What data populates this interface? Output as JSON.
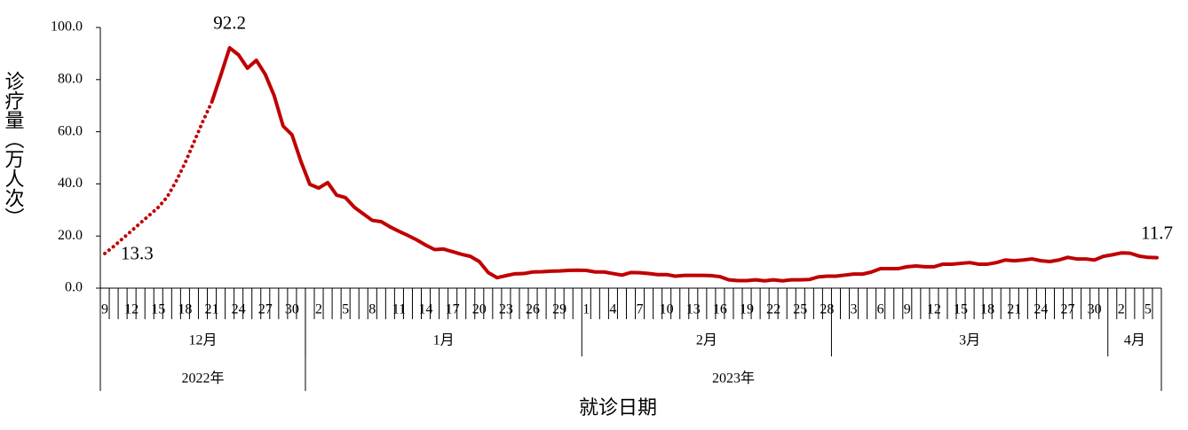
{
  "chart_data": {
    "type": "line",
    "y_label": "诊疗量（万人次）",
    "x_label": "就诊日期",
    "ylim": [
      0,
      100
    ],
    "yticks": [
      {
        "value": 0,
        "label": "0.0"
      },
      {
        "value": 20,
        "label": "20.0"
      },
      {
        "value": 40,
        "label": "40.0"
      },
      {
        "value": 60,
        "label": "60.0"
      },
      {
        "value": 80,
        "label": "80.0"
      },
      {
        "value": 100,
        "label": "100.0"
      }
    ],
    "years": [
      {
        "label": "2022年",
        "months": [
          {
            "label": "12月",
            "days": [
              9,
              null,
              null,
              12,
              null,
              null,
              15,
              null,
              null,
              18,
              null,
              null,
              21,
              null,
              null,
              24,
              null,
              null,
              27,
              null,
              null,
              30,
              null
            ]
          }
        ]
      },
      {
        "label": "2023年",
        "months": [
          {
            "label": "1月",
            "days": [
              null,
              2,
              null,
              null,
              5,
              null,
              null,
              8,
              null,
              null,
              11,
              null,
              null,
              14,
              null,
              null,
              17,
              null,
              null,
              20,
              null,
              null,
              23,
              null,
              null,
              26,
              null,
              null,
              29,
              null,
              null
            ]
          },
          {
            "label": "2月",
            "days": [
              1,
              null,
              null,
              4,
              null,
              null,
              7,
              null,
              null,
              10,
              null,
              null,
              13,
              null,
              null,
              16,
              null,
              null,
              19,
              null,
              null,
              22,
              null,
              null,
              25,
              null,
              null,
              28
            ]
          },
          {
            "label": "3月",
            "days": [
              null,
              null,
              3,
              null,
              null,
              6,
              null,
              null,
              9,
              null,
              null,
              12,
              null,
              null,
              15,
              null,
              null,
              18,
              null,
              null,
              21,
              null,
              null,
              24,
              null,
              null,
              27,
              null,
              null,
              30,
              null
            ]
          },
          {
            "label": "4月",
            "days": [
              null,
              2,
              null,
              null,
              5,
              null
            ]
          }
        ]
      }
    ],
    "series": [
      {
        "color": "#c00000",
        "style": "dotted",
        "values": [
          13.3,
          16,
          19,
          22,
          25,
          28,
          31,
          35,
          41,
          48,
          56,
          64,
          71.4,
          null,
          null,
          null,
          null,
          null,
          null,
          null,
          null,
          null,
          null,
          null,
          null,
          null,
          null,
          null,
          null,
          null,
          null,
          null,
          null,
          null,
          null,
          null,
          null,
          null,
          null,
          null,
          null,
          null,
          null,
          null,
          null,
          null,
          null,
          null,
          null,
          null,
          null,
          null,
          null,
          null,
          null,
          null,
          null,
          null,
          null,
          null,
          null,
          null,
          null,
          null,
          null,
          null,
          null,
          null,
          null,
          null,
          null,
          null,
          null,
          null,
          null,
          null,
          null,
          null,
          null,
          null,
          null,
          null,
          null,
          null,
          null,
          null,
          null,
          null,
          null,
          null,
          null,
          null,
          null,
          null,
          null,
          null,
          null,
          null,
          null,
          null,
          null,
          null,
          null,
          null,
          null,
          null,
          null,
          null,
          null,
          null,
          null,
          null,
          null,
          null,
          null,
          null,
          null,
          null,
          null
        ],
        "value_labels": [
          "13.3",
          null,
          null,
          null,
          null,
          null,
          null,
          null,
          null,
          null,
          null,
          null,
          null,
          null,
          null,
          null,
          null,
          null,
          null,
          null,
          null,
          null,
          null,
          null,
          null,
          null,
          null,
          null,
          null,
          null,
          null,
          null,
          null,
          null,
          null,
          null,
          null,
          null,
          null,
          null,
          null,
          null,
          null,
          null,
          null,
          null,
          null,
          null,
          null,
          null,
          null,
          null,
          null,
          null,
          null,
          null,
          null,
          null,
          null,
          null,
          null,
          null,
          null,
          null,
          null,
          null,
          null,
          null,
          null,
          null,
          null,
          null,
          null,
          null,
          null,
          null,
          null,
          null,
          null,
          null,
          null,
          null,
          null,
          null,
          null,
          null,
          null,
          null,
          null,
          null,
          null,
          null,
          null,
          null,
          null,
          null,
          null,
          null,
          null,
          null,
          null,
          null,
          null,
          null,
          null,
          null,
          null,
          null,
          null,
          null,
          null,
          null,
          null,
          null,
          null,
          null,
          null,
          null,
          null
        ]
      },
      {
        "color": "#c00000",
        "style": "solid",
        "values": [
          null,
          null,
          null,
          null,
          null,
          null,
          null,
          null,
          null,
          null,
          null,
          null,
          71.4,
          81.6,
          92.2,
          89.5,
          84.4,
          87.4,
          82,
          73.8,
          62.2,
          58.8,
          48.6,
          39.8,
          38.4,
          40.5,
          35.7,
          34.7,
          31,
          28.5,
          26,
          25.5,
          23.5,
          21.8,
          20.2,
          18.5,
          16.5,
          14.8,
          15,
          14,
          13,
          12.2,
          10.2,
          6,
          4,
          4.8,
          5.5,
          5.6,
          6.2,
          6.3,
          6.5,
          6.6,
          6.8,
          6.9,
          6.8,
          6.2,
          6.2,
          5.6,
          5,
          6,
          5.9,
          5.6,
          5.2,
          5.2,
          4.6,
          4.9,
          4.9,
          4.9,
          4.8,
          4.4,
          3.2,
          2.9,
          2.9,
          3.2,
          2.8,
          3.2,
          2.8,
          3.2,
          3.2,
          3.3,
          4.3,
          4.6,
          4.6,
          5,
          5.4,
          5.4,
          6.2,
          7.5,
          7.5,
          7.5,
          8.2,
          8.5,
          8.2,
          8.2,
          9.2,
          9.2,
          9.5,
          9.8,
          9.2,
          9.2,
          9.8,
          10.8,
          10.5,
          10.8,
          11.2,
          10.5,
          10.2,
          10.8,
          11.8,
          11.2,
          11.2,
          10.8,
          12.2,
          12.8,
          13.5,
          13.4,
          12.3,
          11.8,
          11.7
        ],
        "value_labels": [
          null,
          null,
          null,
          null,
          null,
          null,
          null,
          null,
          null,
          null,
          null,
          null,
          null,
          null,
          "92.2",
          null,
          null,
          null,
          null,
          null,
          null,
          null,
          null,
          null,
          null,
          null,
          null,
          null,
          null,
          null,
          null,
          null,
          null,
          null,
          null,
          null,
          null,
          null,
          null,
          null,
          null,
          null,
          null,
          null,
          null,
          null,
          null,
          null,
          null,
          null,
          null,
          null,
          null,
          null,
          null,
          null,
          null,
          null,
          null,
          null,
          null,
          null,
          null,
          null,
          null,
          null,
          null,
          null,
          null,
          null,
          null,
          null,
          null,
          null,
          null,
          null,
          null,
          null,
          null,
          null,
          null,
          null,
          null,
          null,
          null,
          null,
          null,
          null,
          null,
          null,
          null,
          null,
          null,
          null,
          null,
          null,
          null,
          null,
          null,
          null,
          null,
          null,
          null,
          null,
          null,
          null,
          null,
          null,
          null,
          null,
          null,
          null,
          null,
          null,
          null,
          null,
          null,
          null,
          "11.7"
        ]
      }
    ]
  }
}
